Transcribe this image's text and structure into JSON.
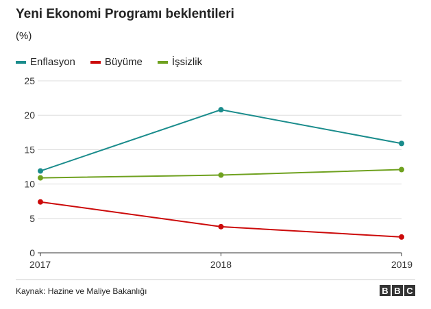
{
  "title": "Yeni Ekonomi Programı beklentileri",
  "subtitle": "(%)",
  "source": "Kaynak: Hazine ve Maliye Bakanlığı",
  "brand": [
    "B",
    "B",
    "C"
  ],
  "chart_data": {
    "type": "line",
    "title": "Yeni Ekonomi Programı beklentileri",
    "ylabel": "(%)",
    "xlabel": "",
    "x": [
      "2017",
      "2018",
      "2019"
    ],
    "ylim": [
      0,
      25
    ],
    "yticks": [
      0,
      5,
      10,
      15,
      20,
      25
    ],
    "grid": true,
    "legend_position": "top-left",
    "series": [
      {
        "name": "Enflasyon",
        "color": "#1a8c8c",
        "values": [
          11.9,
          20.8,
          15.9
        ]
      },
      {
        "name": "Büyüme",
        "color": "#cc0a0a",
        "values": [
          7.4,
          3.8,
          2.3
        ]
      },
      {
        "name": "İşsizlik",
        "color": "#6fa11f",
        "values": [
          10.9,
          11.3,
          12.1
        ]
      }
    ]
  }
}
